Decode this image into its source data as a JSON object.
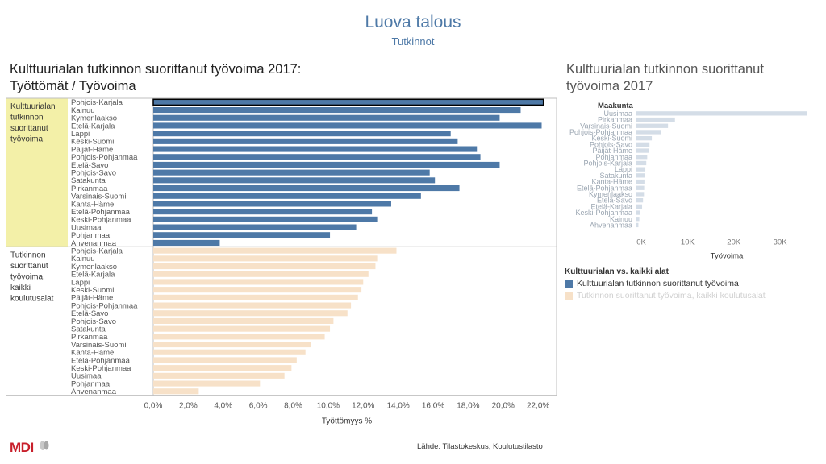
{
  "header": {
    "title": "Luova talous",
    "subtitle": "Tutkinnot"
  },
  "left_panel": {
    "title_line1": "Kulttuurialan tutkinnon suorittanut työvoima 2017:",
    "title_line2": "Työttömät / Työvoima",
    "row_labels": [
      [
        "Kulttuurialan",
        "tutkinnon",
        "suorittanut",
        "työvoima"
      ],
      [
        "Tutkinnon",
        "suorittanut",
        "työvoima,",
        "kaikki",
        "koulutusalat"
      ]
    ],
    "highlight_color": "#f3f0a8"
  },
  "right_panel": {
    "title_line1": "Kulttuurialan tutkinnon suorittanut",
    "title_line2": "työvoima 2017"
  },
  "legend": {
    "title": "Kulttuurialan vs. kaikki alat",
    "items": [
      {
        "label": "Kulttuurialan tutkinnon suorittanut työvoima",
        "color": "#4e79a7"
      },
      {
        "label": "Tutkinnon suorittanut työvoima, kaikki koulutusalat",
        "color": "#f7e1c8"
      }
    ]
  },
  "footer": {
    "logo": "MDI",
    "source": "Lähde: Tilastokeskus, Koulutustilasto"
  },
  "chart_data": [
    {
      "type": "bar",
      "orientation": "horizontal",
      "xlabel": "Työttömyys %",
      "xlim": [
        0,
        22.5
      ],
      "ticks": [
        0,
        2,
        4,
        6,
        8,
        10,
        12,
        14,
        16,
        18,
        20,
        22
      ],
      "tick_labels": [
        "0,0%",
        "2,0%",
        "4,0%",
        "6,0%",
        "8,0%",
        "10,0%",
        "12,0%",
        "14,0%",
        "16,0%",
        "18,0%",
        "20,0%",
        "22,0%"
      ],
      "categories": [
        "Pohjois-Karjala",
        "Kainuu",
        "Kymenlaakso",
        "Etelä-Karjala",
        "Lappi",
        "Keski-Suomi",
        "Päijät-Häme",
        "Pohjois-Pohjanmaa",
        "Etelä-Savo",
        "Pohjois-Savo",
        "Satakunta",
        "Pirkanmaa",
        "Varsinais-Suomi",
        "Kanta-Häme",
        "Etelä-Pohjanmaa",
        "Keski-Pohjanmaa",
        "Uusimaa",
        "Pohjanmaa",
        "Ahvenanmaa"
      ],
      "series": [
        {
          "name": "Kulttuurialan tutkinnon suorittanut työvoima",
          "color": "#4e79a7",
          "values": [
            22.3,
            21.0,
            19.8,
            22.2,
            17.0,
            17.4,
            18.5,
            18.7,
            19.8,
            15.8,
            16.1,
            17.5,
            15.3,
            13.6,
            12.5,
            12.8,
            11.6,
            10.1,
            3.8
          ]
        },
        {
          "name": "Tutkinnon suorittanut työvoima, kaikki koulutusalat",
          "color": "#f7e1c8",
          "values": [
            13.9,
            12.8,
            12.7,
            12.3,
            12.0,
            11.9,
            11.7,
            11.3,
            11.1,
            10.3,
            10.1,
            9.8,
            9.0,
            8.7,
            8.2,
            7.9,
            7.5,
            6.1,
            2.6
          ]
        }
      ]
    },
    {
      "type": "bar",
      "orientation": "horizontal",
      "ylabel": "Maakunta",
      "xlabel": "Työvoima",
      "xlim": [
        0,
        38000
      ],
      "ticks": [
        0,
        10000,
        20000,
        30000
      ],
      "tick_labels": [
        "0K",
        "10K",
        "20K",
        "30K"
      ],
      "categories": [
        "Uusimaa",
        "Pirkanmaa",
        "Varsinais-Suomi",
        "Pohjois-Pohjanmaa",
        "Keski-Suomi",
        "Pohjois-Savo",
        "Päijät-Häme",
        "Pohjanmaa",
        "Pohjois-Karjala",
        "Lappi",
        "Satakunta",
        "Kanta-Häme",
        "Etelä-Pohjanmaa",
        "Kymenlaakso",
        "Etelä-Savo",
        "Etelä-Karjala",
        "Keski-Pohjanmaa",
        "Kainuu",
        "Ahvenanmaa"
      ],
      "values": [
        38000,
        8500,
        7000,
        5500,
        3500,
        3000,
        2800,
        2500,
        2300,
        2100,
        2000,
        1900,
        1850,
        1800,
        1600,
        1400,
        1000,
        800,
        600
      ],
      "color": "#d4dde7"
    }
  ]
}
